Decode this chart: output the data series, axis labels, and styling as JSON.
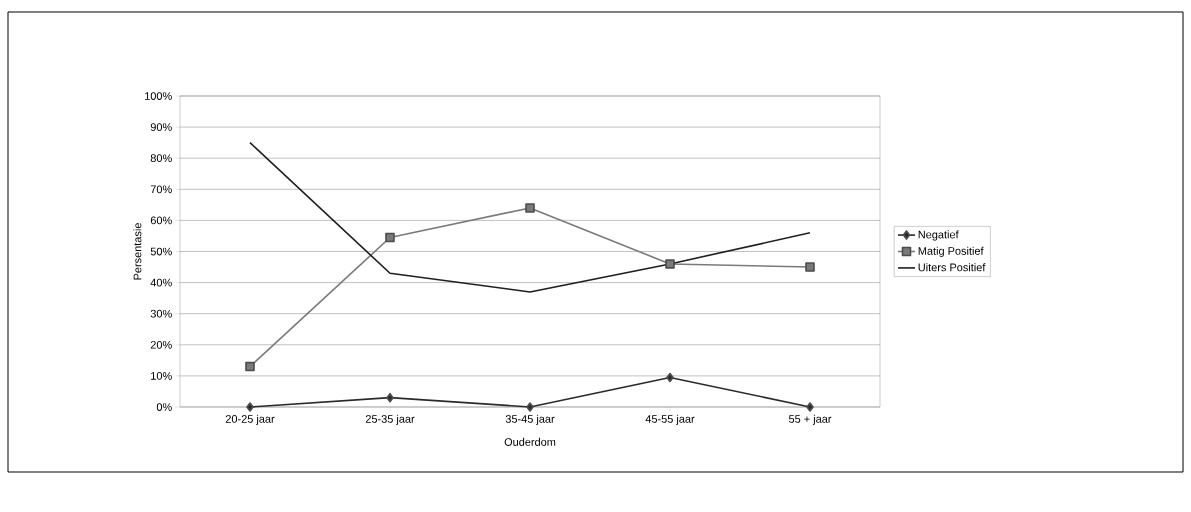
{
  "chart_data": {
    "type": "line",
    "xlabel": "Ouderdom",
    "ylabel": "Persentasie",
    "categories": [
      "20-25 jaar",
      "25-35 jaar",
      "35-45 jaar",
      "45-55 jaar",
      "55 + jaar"
    ],
    "series": [
      {
        "name": "Negatief",
        "color": "#2a2a2a",
        "marker": "diamond",
        "values": [
          0,
          3,
          0,
          9.5,
          0
        ]
      },
      {
        "name": "Matig Positief",
        "color": "#7a7a7a",
        "marker": "square",
        "values": [
          13,
          54.5,
          64,
          46,
          45
        ]
      },
      {
        "name": "Uiters Positief",
        "color": "#1e1e1e",
        "marker": "none",
        "values": [
          85,
          43,
          37,
          46,
          56
        ]
      }
    ],
    "ylim": [
      0,
      100
    ],
    "yticks": [
      {
        "value": 0,
        "label": "0%"
      },
      {
        "value": 10,
        "label": "10%"
      },
      {
        "value": 20,
        "label": "20%"
      },
      {
        "value": 30,
        "label": "30%"
      },
      {
        "value": 40,
        "label": "40%"
      },
      {
        "value": 50,
        "label": "50%"
      },
      {
        "value": 60,
        "label": "60%"
      },
      {
        "value": 70,
        "label": "70%"
      },
      {
        "value": 80,
        "label": "80%"
      },
      {
        "value": 90,
        "label": "90%"
      },
      {
        "value": 100,
        "label": "100%"
      }
    ],
    "grid": "y",
    "legend": "right"
  }
}
